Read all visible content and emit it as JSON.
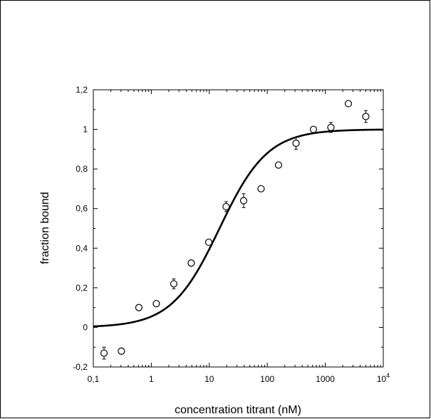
{
  "chart_data": {
    "type": "scatter",
    "xscale": "log",
    "xlim": [
      0.1,
      10000
    ],
    "ylim": [
      -0.2,
      1.2
    ],
    "xlabel": "concentration titrant (nM)",
    "ylabel": "fraction bound",
    "xticks": [
      {
        "value": 0.1,
        "label": "0,1"
      },
      {
        "value": 1,
        "label": "1"
      },
      {
        "value": 10,
        "label": "10"
      },
      {
        "value": 100,
        "label": "100"
      },
      {
        "value": 1000,
        "label": "1000"
      },
      {
        "value": 10000,
        "label": "10",
        "sup": "4"
      }
    ],
    "yticks": [
      {
        "value": -0.2,
        "label": "-0,2"
      },
      {
        "value": 0,
        "label": "0"
      },
      {
        "value": 0.2,
        "label": "0,2"
      },
      {
        "value": 0.4,
        "label": "0,4"
      },
      {
        "value": 0.6,
        "label": "0,6"
      },
      {
        "value": 0.8,
        "label": "0,8"
      },
      {
        "value": 1,
        "label": "1"
      },
      {
        "value": 1.2,
        "label": "1,2"
      }
    ],
    "points": [
      {
        "x": 0.153,
        "y": -0.13,
        "err": 0.03
      },
      {
        "x": 0.305,
        "y": -0.12,
        "err": 0.015
      },
      {
        "x": 0.61,
        "y": 0.1,
        "err": 0.015
      },
      {
        "x": 1.22,
        "y": 0.12,
        "err": 0.01
      },
      {
        "x": 2.44,
        "y": 0.22,
        "err": 0.025
      },
      {
        "x": 4.88,
        "y": 0.325,
        "err": 0.01
      },
      {
        "x": 9.77,
        "y": 0.43,
        "err": 0.01
      },
      {
        "x": 19.5,
        "y": 0.61,
        "err": 0.025
      },
      {
        "x": 39.1,
        "y": 0.64,
        "err": 0.035
      },
      {
        "x": 78.1,
        "y": 0.7,
        "err": 0.01
      },
      {
        "x": 156,
        "y": 0.82,
        "err": 0.01
      },
      {
        "x": 313,
        "y": 0.93,
        "err": 0.03
      },
      {
        "x": 625,
        "y": 1.0,
        "err": 0.01
      },
      {
        "x": 1250,
        "y": 1.01,
        "err": 0.025
      },
      {
        "x": 2500,
        "y": 1.13,
        "err": 0.01
      },
      {
        "x": 5000,
        "y": 1.065,
        "err": 0.03
      }
    ],
    "fit": {
      "type": "sigmoid",
      "kd": 15,
      "hill": 1.05,
      "bottom": 0,
      "top": 1
    },
    "grid": false,
    "legend": "none"
  }
}
